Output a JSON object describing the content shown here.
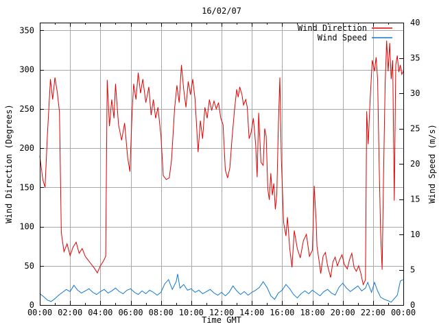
{
  "title": "16/02/07",
  "chart_data": {
    "type": "line",
    "title": "16/02/07",
    "xlabel": "Time GMT",
    "ylabel_left": "Wind Direction (Degrees)",
    "ylabel_right": "Wind Speed (m/s)",
    "grid": true,
    "legend_position": "top-right",
    "x_range_hours": [
      0,
      24
    ],
    "x_tick_interval_hours": 2,
    "x_minor_tick_hours": 1,
    "x_tick_labels": [
      "00:00",
      "02:00",
      "04:00",
      "06:00",
      "08:00",
      "10:00",
      "12:00",
      "14:00",
      "16:00",
      "18:00",
      "20:00",
      "22:00",
      "00:00"
    ],
    "y_left": {
      "range": [
        0,
        360
      ],
      "ticks": [
        0,
        50,
        100,
        150,
        200,
        250,
        300,
        350
      ]
    },
    "y_right": {
      "range": [
        0,
        40
      ],
      "ticks": [
        0,
        5,
        10,
        15,
        20,
        25,
        30,
        35,
        40
      ]
    },
    "series": [
      {
        "name": "Wind Direction",
        "axis": "left",
        "color": "#e10000",
        "points": [
          [
            0.0,
            190
          ],
          [
            0.2,
            160
          ],
          [
            0.35,
            150
          ],
          [
            0.5,
            215
          ],
          [
            0.7,
            288
          ],
          [
            0.85,
            262
          ],
          [
            1.0,
            290
          ],
          [
            1.15,
            272
          ],
          [
            1.3,
            246
          ],
          [
            1.42,
            92
          ],
          [
            1.6,
            68
          ],
          [
            1.8,
            78
          ],
          [
            2.0,
            63
          ],
          [
            2.2,
            74
          ],
          [
            2.4,
            80
          ],
          [
            2.6,
            66
          ],
          [
            2.8,
            72
          ],
          [
            3.0,
            62
          ],
          [
            3.2,
            57
          ],
          [
            3.4,
            52
          ],
          [
            3.6,
            47
          ],
          [
            3.8,
            41
          ],
          [
            4.0,
            50
          ],
          [
            4.2,
            56
          ],
          [
            4.35,
            62
          ],
          [
            4.45,
            287
          ],
          [
            4.6,
            228
          ],
          [
            4.75,
            262
          ],
          [
            4.9,
            238
          ],
          [
            5.0,
            282
          ],
          [
            5.2,
            230
          ],
          [
            5.4,
            210
          ],
          [
            5.6,
            232
          ],
          [
            5.8,
            188
          ],
          [
            5.95,
            170
          ],
          [
            6.1,
            248
          ],
          [
            6.2,
            282
          ],
          [
            6.35,
            262
          ],
          [
            6.5,
            296
          ],
          [
            6.65,
            270
          ],
          [
            6.8,
            288
          ],
          [
            7.0,
            258
          ],
          [
            7.2,
            278
          ],
          [
            7.35,
            242
          ],
          [
            7.5,
            262
          ],
          [
            7.65,
            238
          ],
          [
            7.8,
            252
          ],
          [
            8.0,
            215
          ],
          [
            8.15,
            165
          ],
          [
            8.35,
            160
          ],
          [
            8.55,
            162
          ],
          [
            8.7,
            185
          ],
          [
            8.9,
            250
          ],
          [
            9.05,
            280
          ],
          [
            9.2,
            258
          ],
          [
            9.35,
            306
          ],
          [
            9.5,
            275
          ],
          [
            9.65,
            252
          ],
          [
            9.8,
            285
          ],
          [
            9.95,
            268
          ],
          [
            10.1,
            288
          ],
          [
            10.25,
            262
          ],
          [
            10.45,
            195
          ],
          [
            10.6,
            235
          ],
          [
            10.75,
            212
          ],
          [
            10.9,
            252
          ],
          [
            11.05,
            238
          ],
          [
            11.2,
            262
          ],
          [
            11.35,
            248
          ],
          [
            11.5,
            260
          ],
          [
            11.65,
            250
          ],
          [
            11.8,
            258
          ],
          [
            11.95,
            238
          ],
          [
            12.1,
            230
          ],
          [
            12.25,
            172
          ],
          [
            12.4,
            162
          ],
          [
            12.55,
            175
          ],
          [
            12.7,
            215
          ],
          [
            12.85,
            248
          ],
          [
            13.0,
            275
          ],
          [
            13.1,
            265
          ],
          [
            13.2,
            278
          ],
          [
            13.35,
            268
          ],
          [
            13.45,
            255
          ],
          [
            13.6,
            262
          ],
          [
            13.7,
            252
          ],
          [
            13.82,
            212
          ],
          [
            13.95,
            220
          ],
          [
            14.1,
            238
          ],
          [
            14.25,
            205
          ],
          [
            14.35,
            163
          ],
          [
            14.45,
            245
          ],
          [
            14.6,
            182
          ],
          [
            14.75,
            178
          ],
          [
            14.85,
            225
          ],
          [
            14.95,
            215
          ],
          [
            15.05,
            148
          ],
          [
            15.15,
            134
          ],
          [
            15.25,
            168
          ],
          [
            15.35,
            140
          ],
          [
            15.45,
            155
          ],
          [
            15.55,
            122
          ],
          [
            15.65,
            142
          ],
          [
            15.75,
            228
          ],
          [
            15.85,
            290
          ],
          [
            15.95,
            185
          ],
          [
            16.1,
            105
          ],
          [
            16.25,
            88
          ],
          [
            16.35,
            112
          ],
          [
            16.5,
            72
          ],
          [
            16.65,
            48
          ],
          [
            16.8,
            95
          ],
          [
            17.0,
            72
          ],
          [
            17.2,
            60
          ],
          [
            17.4,
            82
          ],
          [
            17.6,
            90
          ],
          [
            17.8,
            62
          ],
          [
            18.0,
            70
          ],
          [
            18.12,
            152
          ],
          [
            18.25,
            105
          ],
          [
            18.3,
            75
          ],
          [
            18.45,
            55
          ],
          [
            18.55,
            40
          ],
          [
            18.7,
            62
          ],
          [
            18.85,
            67
          ],
          [
            19.0,
            50
          ],
          [
            19.2,
            35
          ],
          [
            19.35,
            55
          ],
          [
            19.5,
            61
          ],
          [
            19.65,
            50
          ],
          [
            19.8,
            58
          ],
          [
            19.95,
            64
          ],
          [
            20.1,
            52
          ],
          [
            20.3,
            46
          ],
          [
            20.45,
            58
          ],
          [
            20.6,
            66
          ],
          [
            20.75,
            48
          ],
          [
            20.9,
            43
          ],
          [
            21.05,
            50
          ],
          [
            21.2,
            40
          ],
          [
            21.35,
            26
          ],
          [
            21.5,
            32
          ],
          [
            21.58,
            247
          ],
          [
            21.68,
            205
          ],
          [
            21.8,
            258
          ],
          [
            21.95,
            312
          ],
          [
            22.1,
            298
          ],
          [
            22.2,
            316
          ],
          [
            22.3,
            288
          ],
          [
            22.4,
            182
          ],
          [
            22.5,
            92
          ],
          [
            22.6,
            45
          ],
          [
            22.7,
            172
          ],
          [
            22.8,
            282
          ],
          [
            22.9,
            337
          ],
          [
            23.0,
            298
          ],
          [
            23.1,
            334
          ],
          [
            23.2,
            288
          ],
          [
            23.3,
            312
          ],
          [
            23.4,
            133
          ],
          [
            23.5,
            306
          ],
          [
            23.6,
            318
          ],
          [
            23.7,
            297
          ],
          [
            23.8,
            306
          ],
          [
            23.9,
            294
          ],
          [
            24.0,
            298
          ]
        ]
      },
      {
        "name": "Wind Speed",
        "axis": "right",
        "color": "#1177d1",
        "points": [
          [
            0.0,
            1.6
          ],
          [
            0.25,
            1.2
          ],
          [
            0.5,
            0.7
          ],
          [
            0.75,
            0.5
          ],
          [
            1.0,
            0.9
          ],
          [
            1.25,
            1.4
          ],
          [
            1.5,
            1.8
          ],
          [
            1.75,
            2.2
          ],
          [
            2.0,
            1.9
          ],
          [
            2.25,
            2.8
          ],
          [
            2.5,
            2.1
          ],
          [
            2.75,
            1.7
          ],
          [
            3.0,
            2.0
          ],
          [
            3.25,
            2.3
          ],
          [
            3.5,
            1.8
          ],
          [
            3.75,
            1.5
          ],
          [
            4.0,
            1.9
          ],
          [
            4.25,
            2.2
          ],
          [
            4.5,
            1.7
          ],
          [
            4.75,
            2.0
          ],
          [
            5.0,
            2.4
          ],
          [
            5.25,
            1.9
          ],
          [
            5.5,
            1.6
          ],
          [
            5.75,
            2.1
          ],
          [
            6.0,
            2.3
          ],
          [
            6.25,
            1.8
          ],
          [
            6.5,
            1.5
          ],
          [
            6.75,
            2.0
          ],
          [
            7.0,
            1.6
          ],
          [
            7.25,
            2.1
          ],
          [
            7.5,
            1.8
          ],
          [
            7.75,
            1.4
          ],
          [
            8.0,
            1.8
          ],
          [
            8.25,
            3.0
          ],
          [
            8.5,
            3.6
          ],
          [
            8.75,
            2.2
          ],
          [
            9.0,
            3.3
          ],
          [
            9.1,
            4.4
          ],
          [
            9.25,
            2.4
          ],
          [
            9.5,
            2.9
          ],
          [
            9.75,
            2.1
          ],
          [
            10.0,
            2.3
          ],
          [
            10.25,
            1.8
          ],
          [
            10.5,
            2.1
          ],
          [
            10.75,
            1.6
          ],
          [
            11.0,
            1.9
          ],
          [
            11.25,
            2.2
          ],
          [
            11.5,
            1.7
          ],
          [
            11.75,
            1.4
          ],
          [
            12.0,
            1.8
          ],
          [
            12.25,
            1.3
          ],
          [
            12.5,
            1.8
          ],
          [
            12.75,
            2.7
          ],
          [
            13.0,
            2.0
          ],
          [
            13.25,
            1.5
          ],
          [
            13.5,
            1.9
          ],
          [
            13.75,
            1.4
          ],
          [
            14.0,
            1.8
          ],
          [
            14.25,
            2.1
          ],
          [
            14.5,
            2.5
          ],
          [
            14.75,
            3.3
          ],
          [
            15.0,
            2.5
          ],
          [
            15.25,
            1.3
          ],
          [
            15.5,
            0.8
          ],
          [
            15.75,
            1.7
          ],
          [
            16.0,
            2.1
          ],
          [
            16.25,
            2.9
          ],
          [
            16.5,
            2.3
          ],
          [
            16.75,
            1.5
          ],
          [
            17.0,
            1.0
          ],
          [
            17.25,
            1.6
          ],
          [
            17.5,
            2.0
          ],
          [
            17.75,
            1.6
          ],
          [
            18.0,
            2.1
          ],
          [
            18.25,
            1.7
          ],
          [
            18.5,
            1.3
          ],
          [
            18.75,
            1.9
          ],
          [
            19.0,
            2.2
          ],
          [
            19.25,
            1.7
          ],
          [
            19.5,
            1.4
          ],
          [
            19.75,
            2.5
          ],
          [
            20.0,
            3.1
          ],
          [
            20.25,
            2.4
          ],
          [
            20.5,
            1.9
          ],
          [
            20.75,
            2.3
          ],
          [
            21.0,
            2.7
          ],
          [
            21.25,
            2.0
          ],
          [
            21.5,
            2.4
          ],
          [
            21.65,
            3.2
          ],
          [
            21.9,
            1.8
          ],
          [
            22.1,
            3.2
          ],
          [
            22.3,
            2.0
          ],
          [
            22.5,
            1.1
          ],
          [
            22.75,
            0.8
          ],
          [
            23.0,
            0.6
          ],
          [
            23.2,
            0.4
          ],
          [
            23.4,
            0.9
          ],
          [
            23.6,
            1.4
          ],
          [
            23.8,
            3.4
          ],
          [
            24.0,
            3.6
          ]
        ]
      }
    ],
    "legend": {
      "entries": [
        "Wind Direction",
        "Wind Speed"
      ]
    }
  },
  "colors": {
    "wind_direction": "#e10000",
    "wind_speed": "#1177d1",
    "grid": "#a8a8a8",
    "axis": "#000000",
    "text": "#000000",
    "background": "#ffffff"
  }
}
